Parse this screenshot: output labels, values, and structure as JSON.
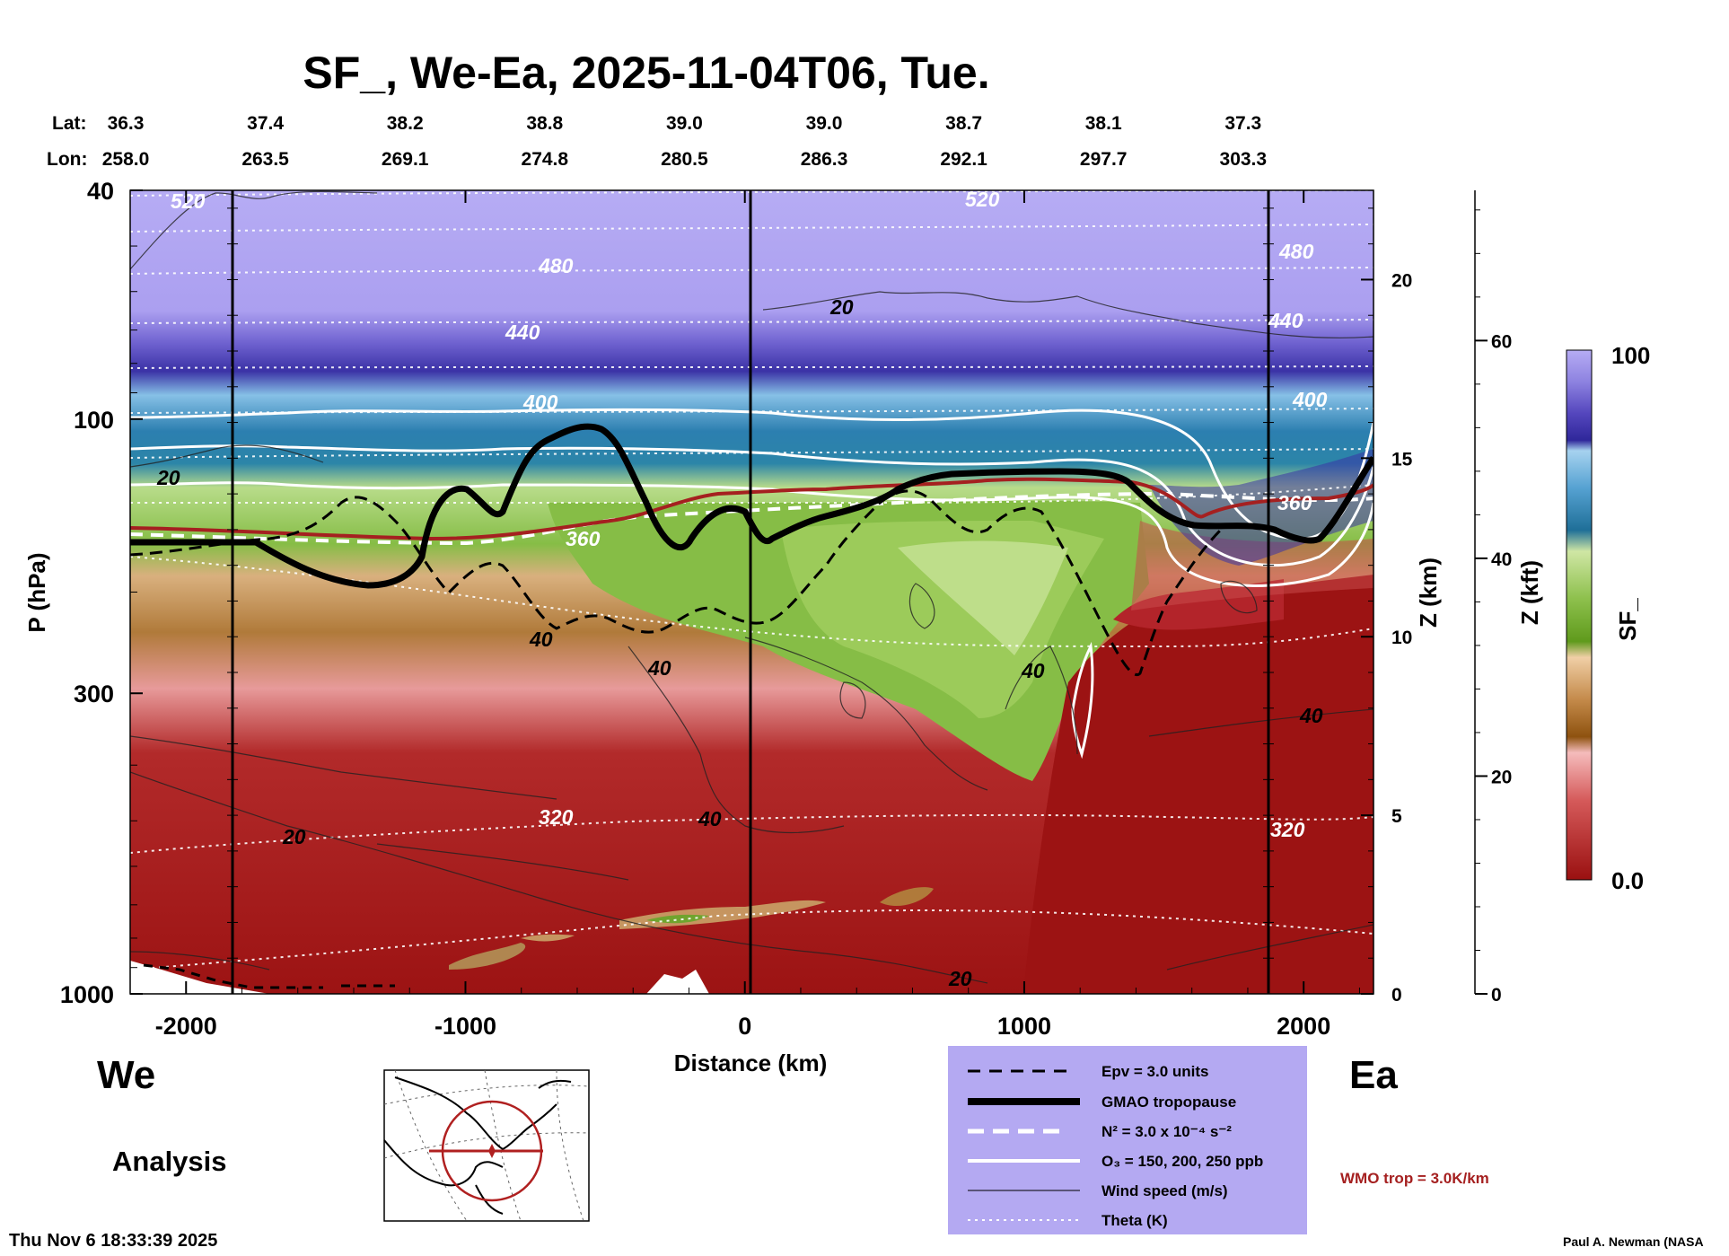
{
  "chart_data": {
    "type": "heatmap",
    "title": "SF_, We-Ea, 2025-11-04T06, Tue.",
    "lat_label": "Lat:",
    "lon_label": "Lon:",
    "lat": [
      "36.3",
      "37.4",
      "38.2",
      "38.8",
      "39.0",
      "39.0",
      "38.7",
      "38.1",
      "37.3"
    ],
    "lon": [
      "258.0",
      "263.5",
      "269.1",
      "274.8",
      "280.5",
      "286.3",
      "292.1",
      "297.7",
      "303.3"
    ],
    "xlabel": "Distance (km)",
    "xlim": [
      -2200,
      2250
    ],
    "x_ticks": [
      "-2000",
      "-1000",
      "0",
      "1000",
      "2000"
    ],
    "ylabel": "P (hPa)",
    "ylim": [
      1000,
      40
    ],
    "y_ticks": [
      "40",
      "100",
      "300",
      "1000"
    ],
    "z_km_label": "Z (km)",
    "z_km_ticks": [
      "20",
      "15",
      "10",
      "5",
      "0"
    ],
    "z_kft_label": "Z (kft)",
    "z_kft_ticks": [
      "60",
      "40",
      "20",
      "0"
    ],
    "colorbar": {
      "label": "SF_",
      "min": "0.0",
      "max": "100"
    },
    "theta_labels": [
      "520",
      "520",
      "480",
      "480",
      "440",
      "440",
      "400",
      "400",
      "360",
      "360",
      "320",
      "320"
    ],
    "wind_labels": [
      "20",
      "20",
      "20",
      "20",
      "40",
      "40",
      "40",
      "40",
      "40"
    ],
    "left_label": "We",
    "right_label": "Ea",
    "analysis_label": "Analysis",
    "timestamp": "Thu Nov  6 18:33:39 2025",
    "credit": "Paul A. Newman (NASA",
    "wmo_label": "WMO trop = 3.0K/km",
    "legend": [
      {
        "label": "Epv = 3.0 units"
      },
      {
        "label": "GMAO tropopause"
      },
      {
        "label": "N² = 3.0 x 10⁻⁴ s⁻²"
      },
      {
        "label": "O₃ = 150, 200, 250 ppb"
      },
      {
        "label": "Wind speed (m/s)"
      },
      {
        "label": "Theta (K)"
      }
    ],
    "colors": {
      "stratosphere": "#b3a9f3",
      "dark_blue": "#3a33a6",
      "teal": "#2a84b3",
      "green": "#8fc24a",
      "tan": "#c69560",
      "red": "#9c1212",
      "wmo": "#a52020",
      "legend_bg": "#b4a9f2"
    }
  }
}
